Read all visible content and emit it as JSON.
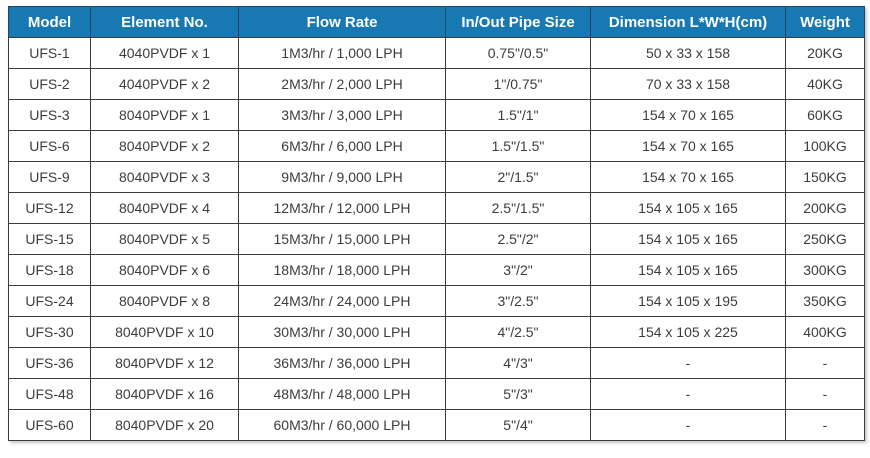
{
  "colors": {
    "header_bg": "#1878B2",
    "header_text": "#FFFFFF",
    "border": "#3A3A3A",
    "cell_text": "#3C3C3C",
    "row_bg": "#FFFFFF"
  },
  "chart_data": {
    "type": "table",
    "title": "",
    "columns": [
      "Model",
      "Element No.",
      "Flow Rate",
      "In/Out Pipe Size",
      "Dimension L*W*H(cm)",
      "Weight"
    ],
    "column_keys": [
      "model",
      "element-no",
      "flow-rate",
      "pipe-size",
      "dimension",
      "weight"
    ],
    "rows": [
      [
        "UFS-1",
        "4040PVDF x 1",
        "1M3/hr / 1,000 LPH",
        "0.75\"/0.5\"",
        "50 x 33 x 158",
        "20KG"
      ],
      [
        "UFS-2",
        "4040PVDF x 2",
        "2M3/hr / 2,000 LPH",
        "1\"/0.75\"",
        "70 x 33 x 158",
        "40KG"
      ],
      [
        "UFS-3",
        "8040PVDF x 1",
        "3M3/hr / 3,000 LPH",
        "1.5\"/1\"",
        "154 x 70 x 165",
        "60KG"
      ],
      [
        "UFS-6",
        "8040PVDF x 2",
        "6M3/hr / 6,000 LPH",
        "1.5\"/1.5\"",
        "154 x 70 x 165",
        "100KG"
      ],
      [
        "UFS-9",
        "8040PVDF x 3",
        "9M3/hr / 9,000 LPH",
        "2\"/1.5\"",
        "154 x 70 x 165",
        "150KG"
      ],
      [
        "UFS-12",
        "8040PVDF x 4",
        "12M3/hr / 12,000 LPH",
        "2.5\"/1.5\"",
        "154 x 105 x 165",
        "200KG"
      ],
      [
        "UFS-15",
        "8040PVDF x 5",
        "15M3/hr / 15,000 LPH",
        "2.5\"/2\"",
        "154 x 105 x 165",
        "250KG"
      ],
      [
        "UFS-18",
        "8040PVDF x 6",
        "18M3/hr / 18,000 LPH",
        "3\"/2\"",
        "154 x 105 x 165",
        "300KG"
      ],
      [
        "UFS-24",
        "8040PVDF x 8",
        "24M3/hr / 24,000 LPH",
        "3\"/2.5\"",
        "154 x 105 x 195",
        "350KG"
      ],
      [
        "UFS-30",
        "8040PVDF x 10",
        "30M3/hr / 30,000 LPH",
        "4\"/2.5\"",
        "154 x 105 x 225",
        "400KG"
      ],
      [
        "UFS-36",
        "8040PVDF x 12",
        "36M3/hr / 36,000 LPH",
        "4\"/3\"",
        "-",
        "-"
      ],
      [
        "UFS-48",
        "8040PVDF x 16",
        "48M3/hr / 48,000 LPH",
        "5\"/3\"",
        "-",
        "-"
      ],
      [
        "UFS-60",
        "8040PVDF x 20",
        "60M3/hr / 60,000 LPH",
        "5\"/4\"",
        "-",
        "-"
      ]
    ]
  }
}
